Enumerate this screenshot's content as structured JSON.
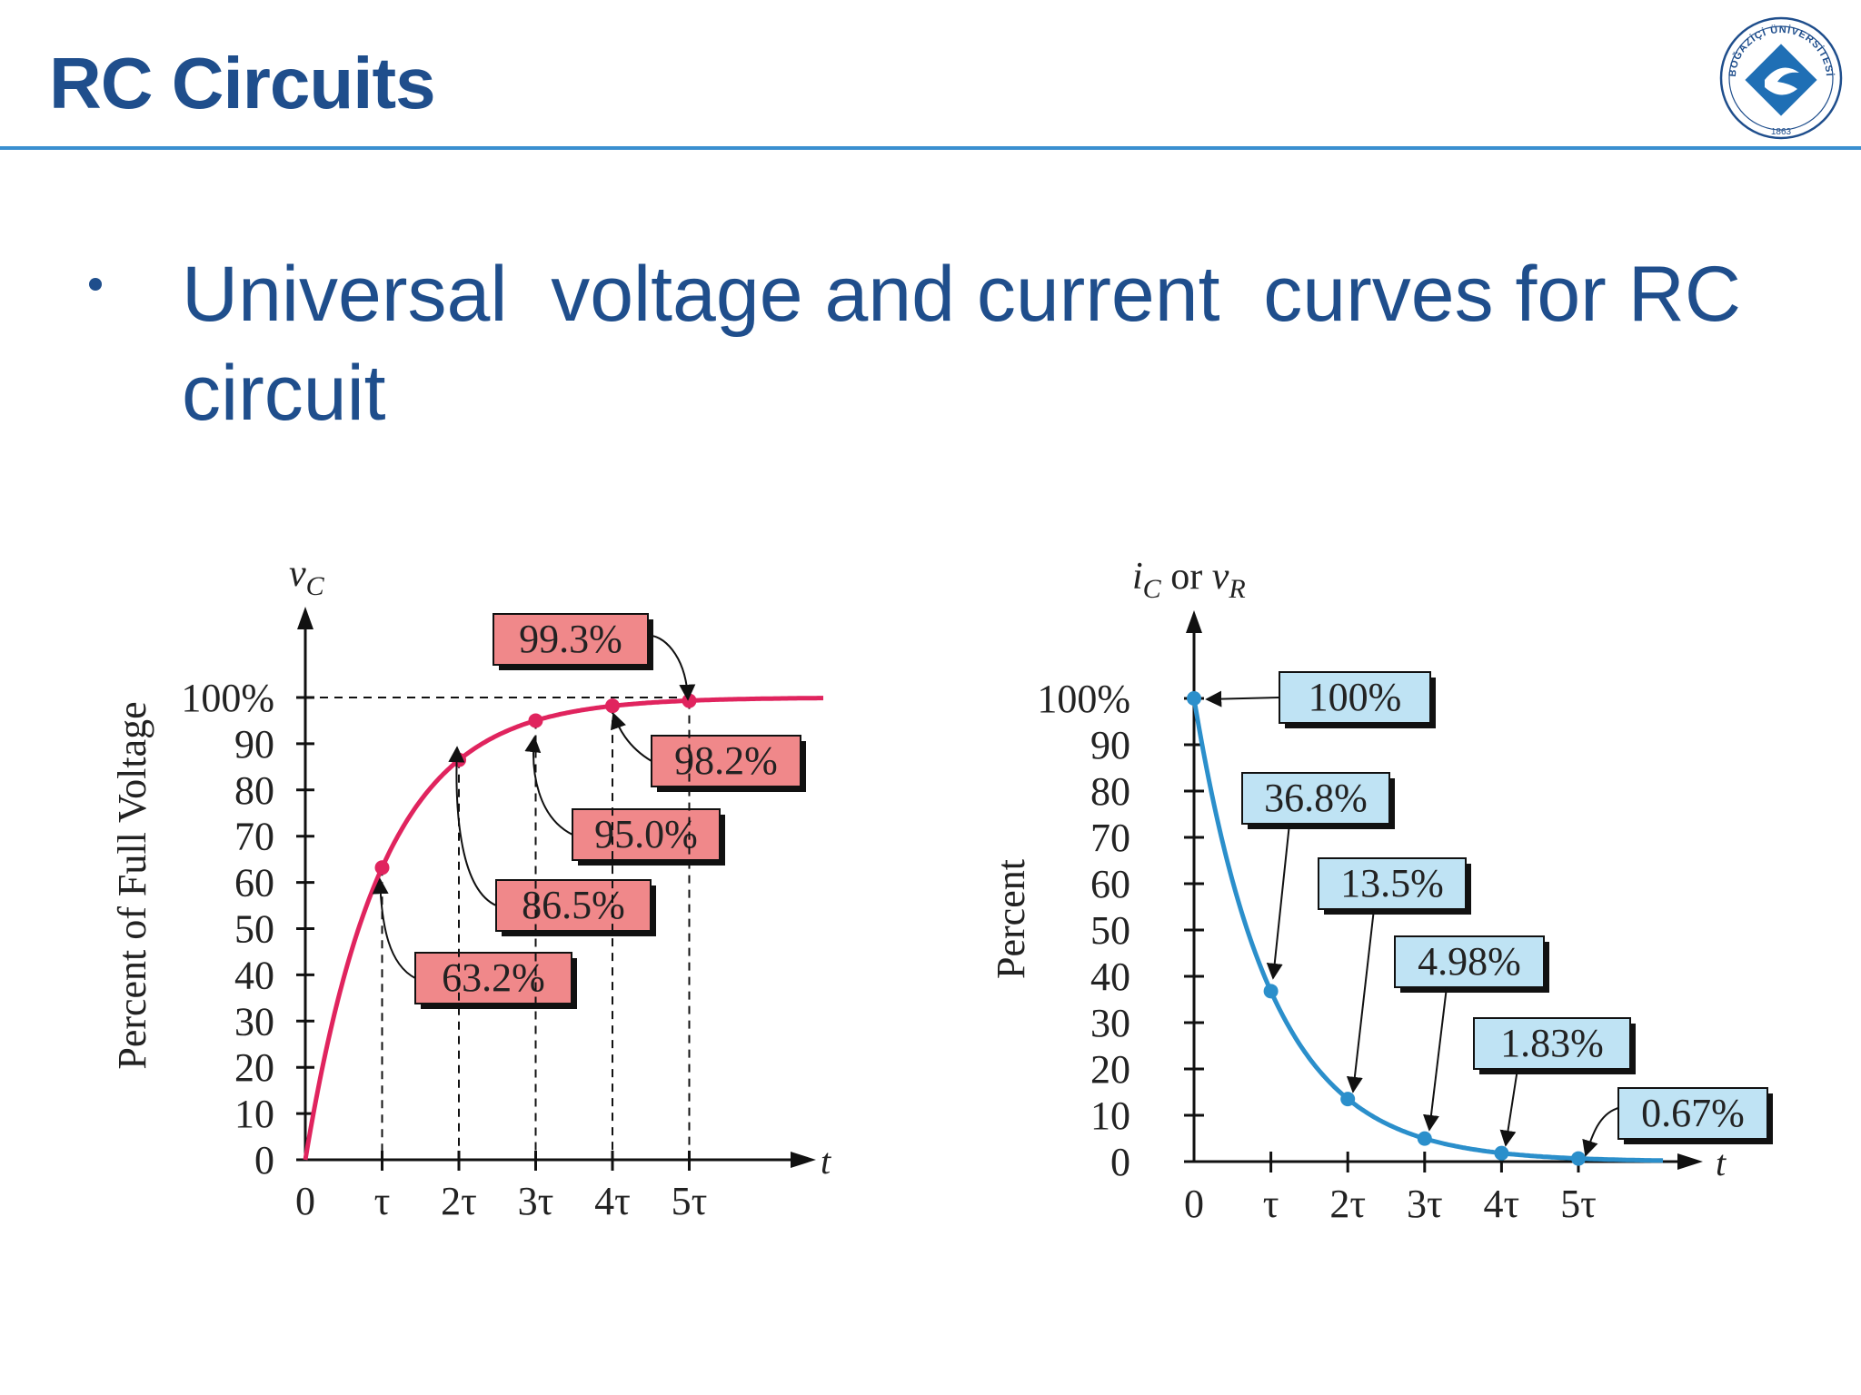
{
  "slide": {
    "title": "RC Circuits",
    "bullet": "Universal  voltage and current  curves for RC circuit",
    "logo_text": "BOĞAZİÇİ ÜNİVERSİTESİ",
    "logo_year": "1863"
  },
  "colors": {
    "title_blue": "#1f4e8c",
    "rule_blue": "#3a8fd0",
    "charge_curve": "#e0245e",
    "charge_label_fill": "#f0888a",
    "discharge_curve": "#2b8fcb",
    "discharge_label_fill": "#bfe3f4"
  },
  "chart_data": [
    {
      "type": "line",
      "ylabel": "Percent of Full Voltage",
      "y_var": "v",
      "y_sub": "C",
      "xvar": "t",
      "ylim": [
        0,
        100
      ],
      "yticks": [
        0,
        10,
        20,
        30,
        40,
        50,
        60,
        70,
        80,
        90,
        100
      ],
      "ytick_labels": [
        "0",
        "10",
        "20",
        "30",
        "40",
        "50",
        "60",
        "70",
        "80",
        "90",
        "100%"
      ],
      "xticks": [
        0,
        1,
        2,
        3,
        4,
        5
      ],
      "xtick_labels": [
        "0",
        "τ",
        "2τ",
        "3τ",
        "4τ",
        "5τ"
      ],
      "reference_line": 100,
      "points": [
        {
          "x": 1,
          "y": 63.2,
          "label": "63.2%"
        },
        {
          "x": 2,
          "y": 86.5,
          "label": "86.5%"
        },
        {
          "x": 3,
          "y": 95.0,
          "label": "95.0%"
        },
        {
          "x": 4,
          "y": 98.2,
          "label": "98.2%"
        },
        {
          "x": 5,
          "y": 99.3,
          "label": "99.3%"
        }
      ]
    },
    {
      "type": "line",
      "ylabel": "Percent",
      "y_var1": "i",
      "y_sub1": "C",
      "y_or": " or ",
      "y_var2": "v",
      "y_sub2": "R",
      "xvar": "t",
      "ylim": [
        0,
        100
      ],
      "yticks": [
        0,
        10,
        20,
        30,
        40,
        50,
        60,
        70,
        80,
        90,
        100
      ],
      "ytick_labels": [
        "0",
        "10",
        "20",
        "30",
        "40",
        "50",
        "60",
        "70",
        "80",
        "90",
        "100%"
      ],
      "xticks": [
        0,
        1,
        2,
        3,
        4,
        5
      ],
      "xtick_labels": [
        "0",
        "τ",
        "2τ",
        "3τ",
        "4τ",
        "5τ"
      ],
      "points": [
        {
          "x": 0,
          "y": 100,
          "label": "100%"
        },
        {
          "x": 1,
          "y": 36.8,
          "label": "36.8%"
        },
        {
          "x": 2,
          "y": 13.5,
          "label": "13.5%"
        },
        {
          "x": 3,
          "y": 4.98,
          "label": "4.98%"
        },
        {
          "x": 4,
          "y": 1.83,
          "label": "1.83%"
        },
        {
          "x": 5,
          "y": 0.67,
          "label": "0.67%"
        }
      ]
    }
  ]
}
